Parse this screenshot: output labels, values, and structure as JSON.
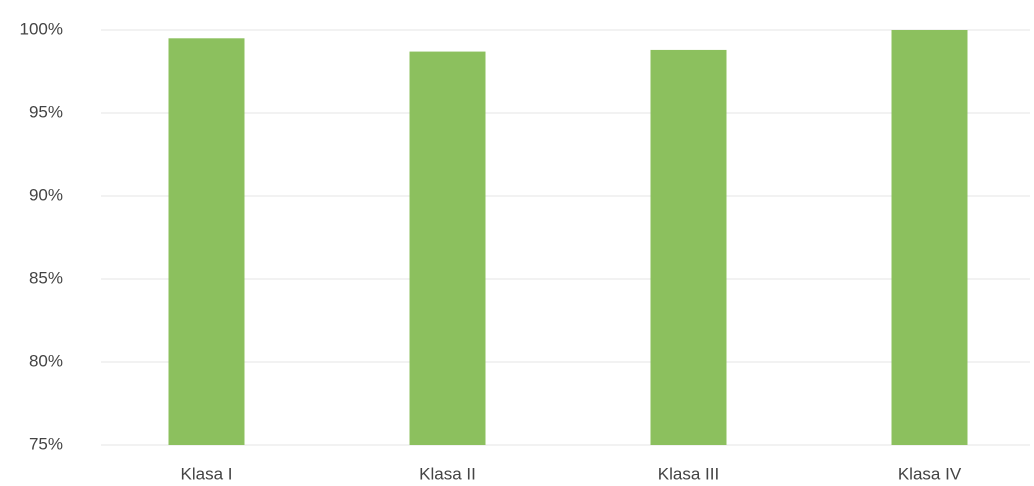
{
  "chart_data": {
    "type": "bar",
    "categories": [
      "Klasa I",
      "Klasa II",
      "Klasa III",
      "Klasa IV"
    ],
    "values": [
      99.5,
      98.7,
      98.8,
      100
    ],
    "color": "#8cc05e",
    "ylim": [
      75,
      100
    ],
    "yticks": [
      {
        "value": 75,
        "label": "75%"
      },
      {
        "value": 80,
        "label": "80%"
      },
      {
        "value": 85,
        "label": "85%"
      },
      {
        "value": 90,
        "label": "90%"
      },
      {
        "value": 95,
        "label": "95%"
      },
      {
        "value": 100,
        "label": "100%"
      }
    ],
    "grid": true
  }
}
